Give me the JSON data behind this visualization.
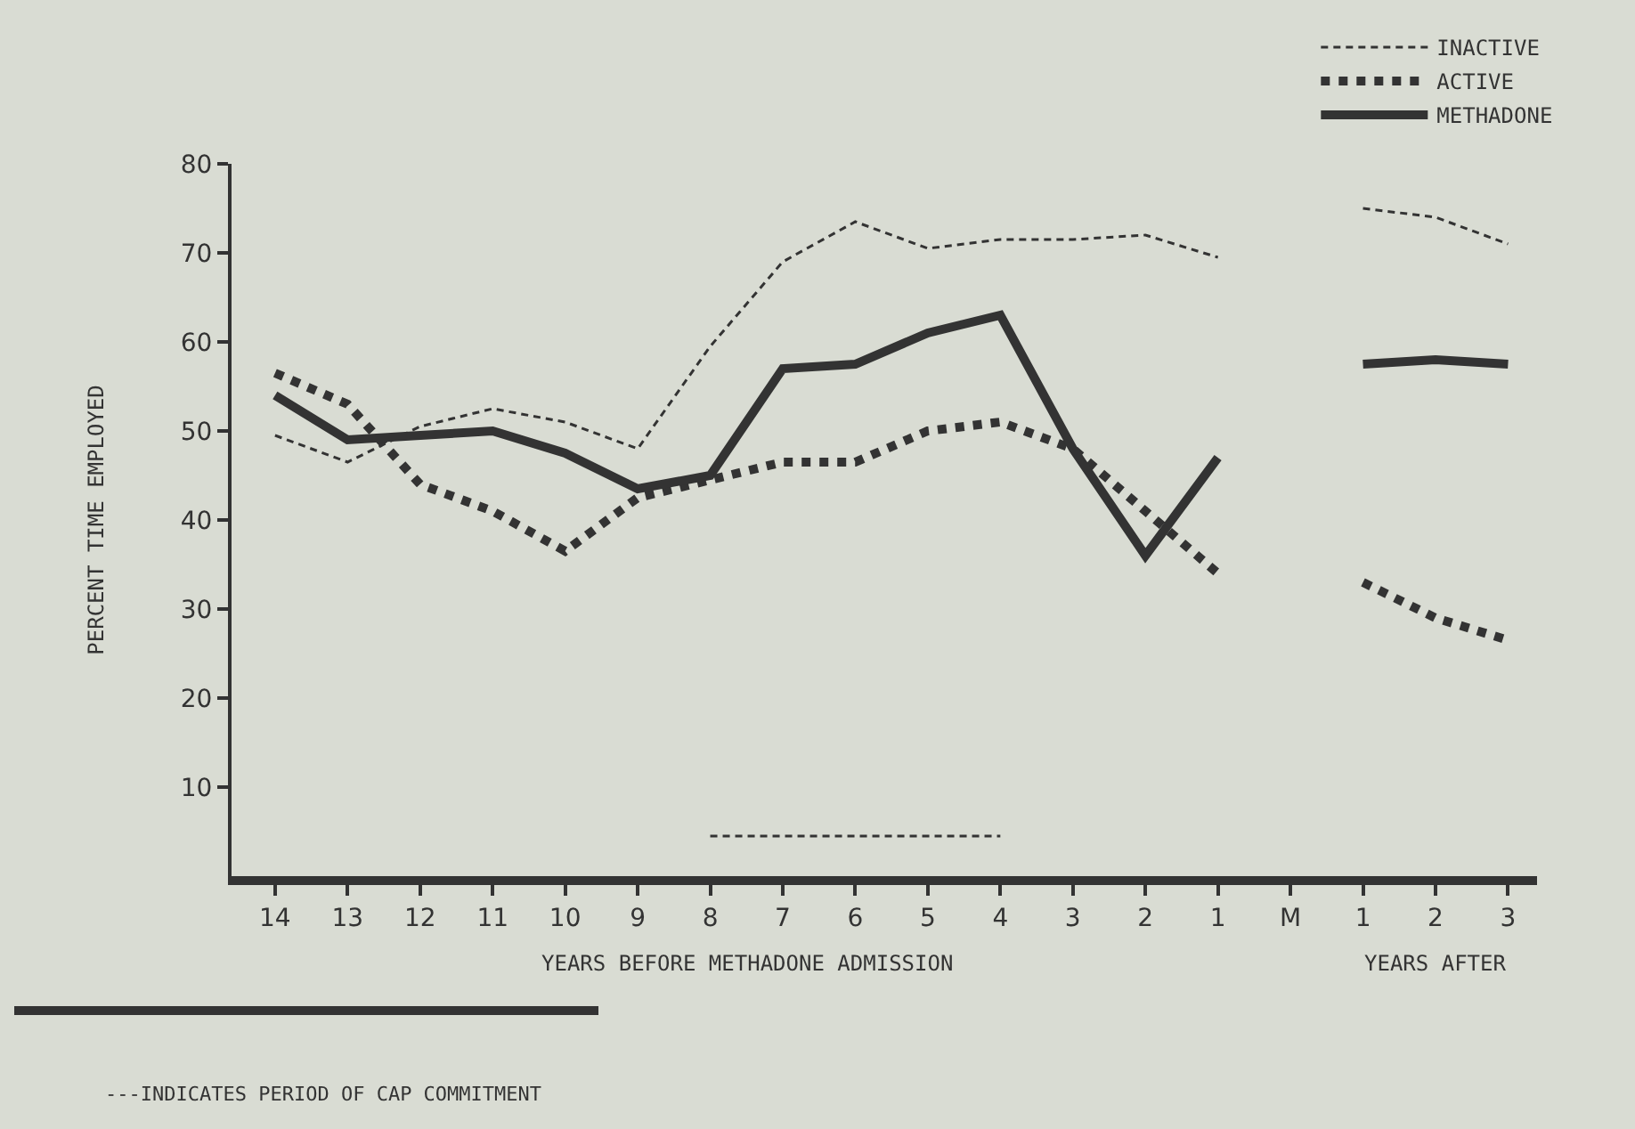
{
  "chart_data": {
    "type": "line",
    "xlabel": "YEARS BEFORE METHADONE ADMISSION",
    "ylabel": "PERCENT TIME EMPLOYED",
    "categories": [
      "14",
      "13",
      "12",
      "11",
      "10",
      "9",
      "8",
      "7",
      "6",
      "5",
      "4",
      "3",
      "2",
      "1",
      "M",
      "1",
      "2",
      "3"
    ],
    "series": [
      {
        "name": "INACTIVE",
        "color": "#333333",
        "line_style": "dashed",
        "values": [
          49.5,
          46.5,
          50.5,
          52.5,
          51,
          48,
          59.5,
          69,
          73.5,
          70.5,
          71.5,
          71.5,
          72,
          69.5,
          null,
          75,
          74,
          71
        ]
      },
      {
        "name": "ACTIVE",
        "color": "#333333",
        "line_style": "dotted",
        "values": [
          56.5,
          53,
          44,
          41,
          36.5,
          42.5,
          44.5,
          46.5,
          46.5,
          50,
          51,
          48,
          41,
          34,
          null,
          33,
          29,
          26.5
        ]
      },
      {
        "name": "METHADONE",
        "color": "#333333",
        "line_style": "solid",
        "values": [
          54,
          49,
          49.5,
          50,
          47.5,
          43.5,
          45,
          57,
          57.5,
          61,
          63,
          48,
          36,
          47,
          null,
          57.5,
          58,
          57.5
        ]
      },
      {
        "color": "#333333",
        "line_style": "dashed",
        "values": [
          null,
          null,
          null,
          null,
          null,
          null,
          4.5,
          4.5,
          4.5,
          4.5,
          4.5,
          null,
          null,
          null,
          null,
          null,
          null,
          null
        ]
      }
    ],
    "annotations": [
      "YEARS AFTER",
      "---INDICATES PERIOD OF CAP COMMITMENT"
    ],
    "ylim": [
      0,
      80
    ],
    "yticks": [
      10,
      20,
      30,
      40,
      50,
      60,
      70,
      80
    ],
    "grid": false,
    "legend": "top right",
    "marker": "none"
  }
}
